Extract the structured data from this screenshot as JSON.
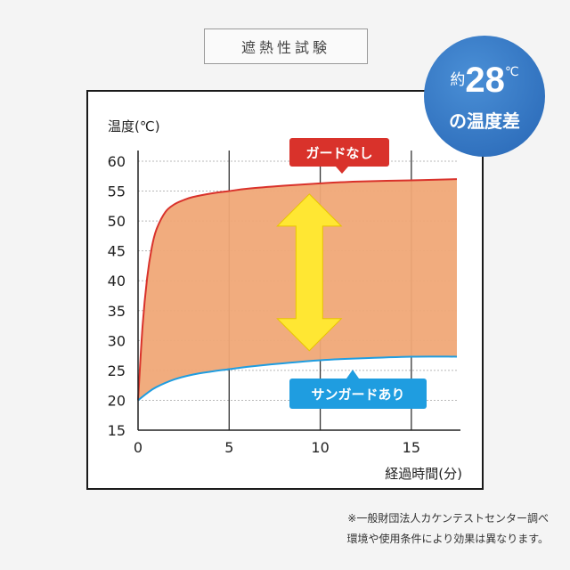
{
  "heading": "遮熱性試験",
  "badge": {
    "prefix": "約",
    "number": "28",
    "unit": "℃",
    "line2": "の温度差"
  },
  "note": {
    "line1": "※一般財団法人カケンテストセンター調べ",
    "line2": "環境や使用条件により効果は異なります。"
  },
  "colors": {
    "upper": "#d9322b",
    "lower": "#1f9de0",
    "fill": "#f0a877",
    "arrow": "#ffe733",
    "badge": "#2f73c4"
  },
  "chart_data": {
    "type": "area",
    "ylabel": "温度(℃)",
    "xlabel": "経過時間(分)",
    "xlim": [
      0,
      17.5
    ],
    "ylim": [
      15,
      60
    ],
    "xticks": [
      0,
      5,
      10,
      15
    ],
    "yticks": [
      15,
      20,
      25,
      30,
      35,
      40,
      45,
      50,
      55,
      60
    ],
    "grid": true,
    "series": [
      {
        "name": "ガードなし",
        "x": [
          0,
          0.25,
          0.5,
          0.75,
          1,
          1.5,
          2,
          2.5,
          3,
          4,
          5,
          6,
          8,
          10,
          12,
          15,
          17.5
        ],
        "y": [
          20,
          32.5,
          40.5,
          45.5,
          48.5,
          51.5,
          52.8,
          53.5,
          54,
          54.6,
          55,
          55.4,
          55.9,
          56.3,
          56.6,
          56.8,
          57
        ]
      },
      {
        "name": "サンガードあり",
        "x": [
          0,
          0.5,
          1,
          2,
          3,
          4,
          5,
          6,
          8,
          10,
          12,
          15,
          17.5
        ],
        "y": [
          20,
          21.2,
          22.2,
          23.5,
          24.3,
          24.8,
          25.2,
          25.6,
          26.2,
          26.7,
          27,
          27.3,
          27.3
        ]
      }
    ]
  }
}
